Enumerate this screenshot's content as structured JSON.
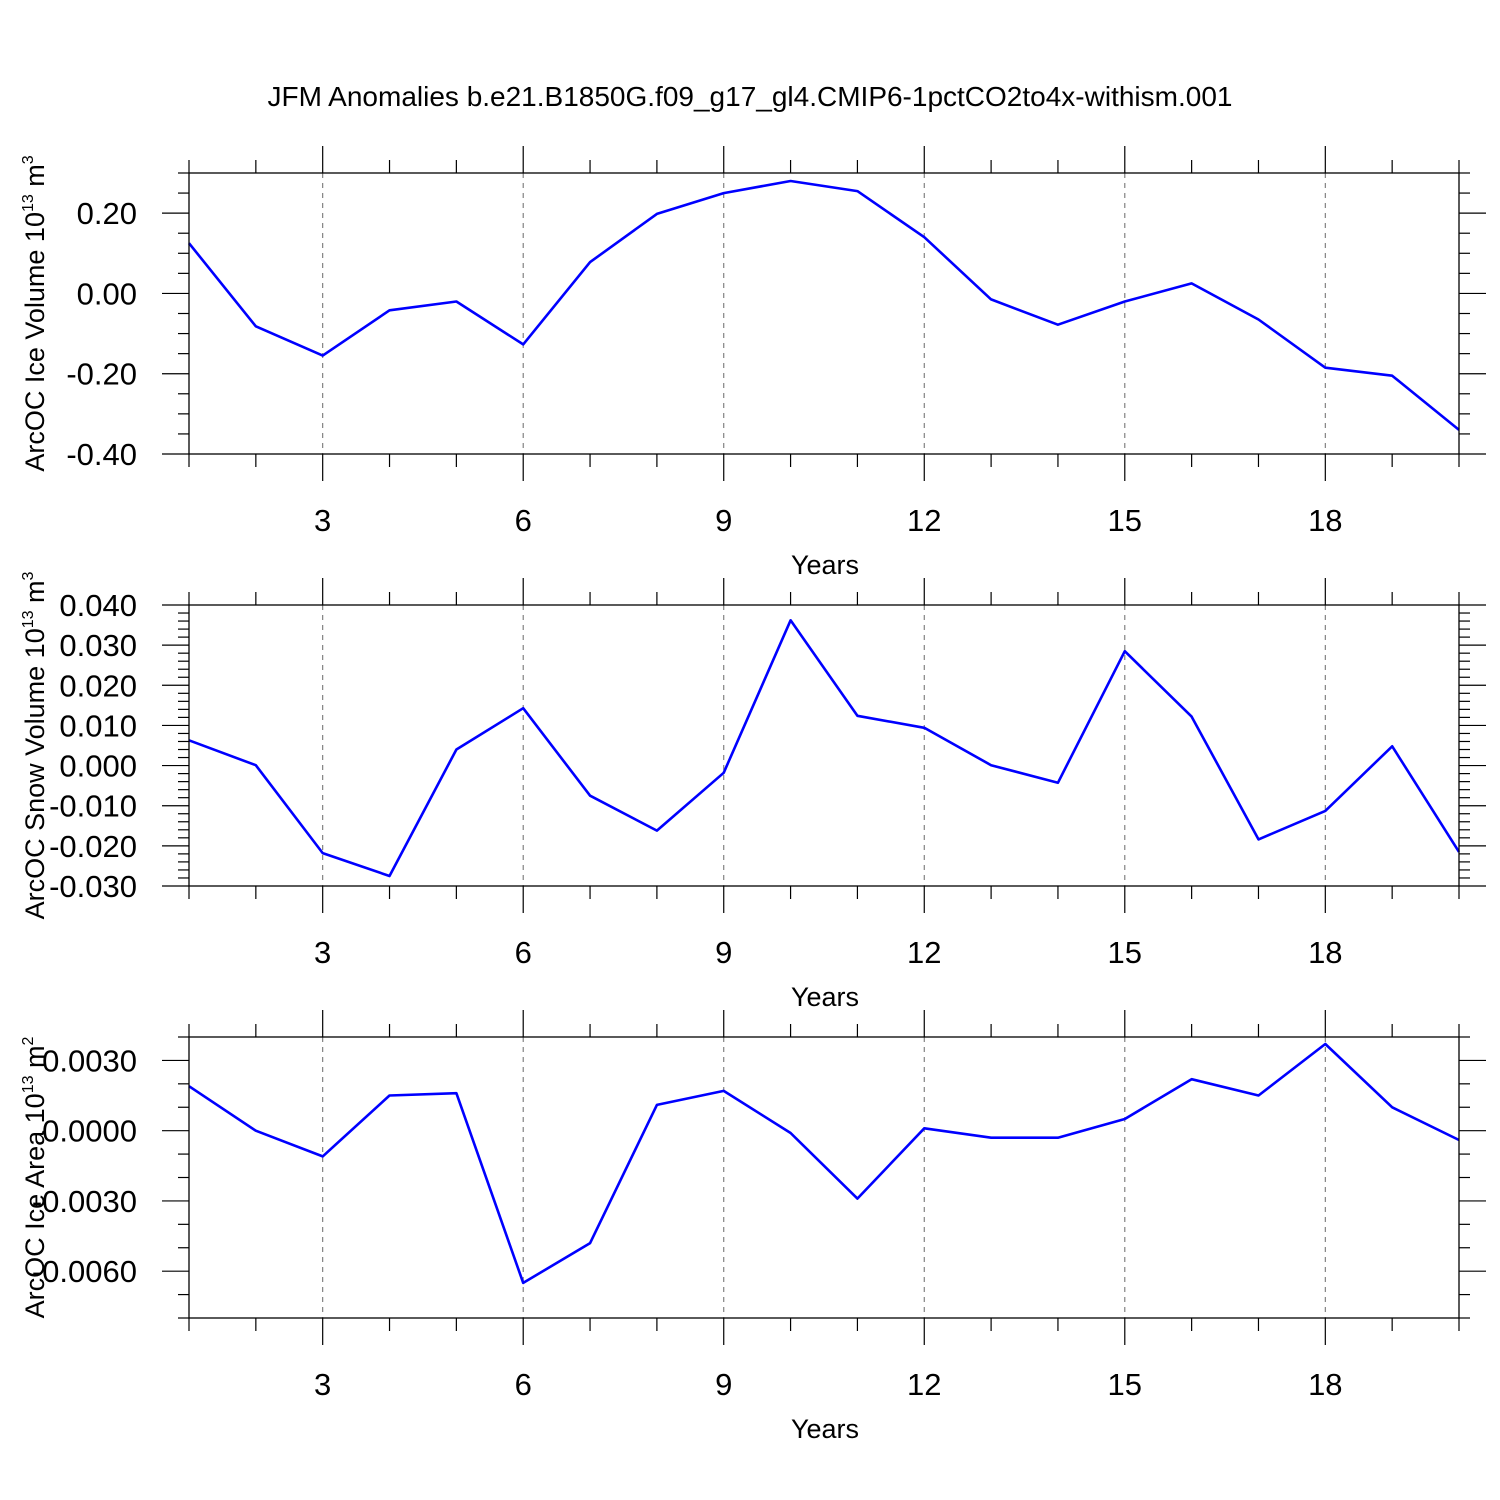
{
  "title": "JFM Anomalies b.e21.B1850G.f09_g17_gl4.CMIP6-1pctCO2to4x-withism.001",
  "colors": {
    "line": "#0000ff",
    "frame": "#000000",
    "grid": "#777777",
    "background": "#ffffff"
  },
  "chart_data": [
    {
      "type": "line",
      "title": "JFM Anomalies b.e21.B1850G.f09_g17_gl4.CMIP6-1pctCO2to4x-withism.001",
      "xlabel": "Years",
      "ylabel": "ArcOC Ice Volume 10",
      "ylabel_exp": "13",
      "ylabel_unit": "m",
      "ylabel_unit_exp": "3",
      "xlim": [
        1,
        20
      ],
      "ylim": [
        -0.4,
        0.3
      ],
      "xticks": [
        3,
        6,
        9,
        12,
        15,
        18
      ],
      "xtick_labels": [
        "3",
        "6",
        "9",
        "12",
        "15",
        "18"
      ],
      "yticks": [
        -0.4,
        -0.2,
        0.0,
        0.2
      ],
      "ytick_labels": [
        "-0.40",
        "-0.20",
        "0.00",
        "0.20"
      ],
      "y_minor_step": 0.05,
      "grid": "vertical dashed at major x ticks",
      "x": [
        1,
        2,
        3,
        4,
        5,
        6,
        7,
        8,
        9,
        10,
        11,
        12,
        13,
        14,
        15,
        16,
        17,
        18,
        19,
        20
      ],
      "values": [
        0.125,
        -0.082,
        -0.155,
        -0.042,
        -0.02,
        -0.127,
        0.078,
        0.198,
        0.25,
        0.28,
        0.255,
        0.14,
        -0.015,
        -0.078,
        -0.02,
        0.025,
        -0.065,
        -0.185,
        -0.205,
        -0.34
      ]
    },
    {
      "type": "line",
      "xlabel": "Years",
      "ylabel": "ArcOC Snow Volume 10",
      "ylabel_exp": "13",
      "ylabel_unit": "m",
      "ylabel_unit_exp": "3",
      "xlim": [
        1,
        20
      ],
      "ylim": [
        -0.03,
        0.04
      ],
      "xticks": [
        3,
        6,
        9,
        12,
        15,
        18
      ],
      "xtick_labels": [
        "3",
        "6",
        "9",
        "12",
        "15",
        "18"
      ],
      "yticks": [
        -0.03,
        -0.02,
        -0.01,
        0.0,
        0.01,
        0.02,
        0.03,
        0.04
      ],
      "ytick_labels": [
        "-0.030",
        "-0.020",
        "-0.010",
        "0.000",
        "0.010",
        "0.020",
        "0.030",
        "0.040"
      ],
      "y_minor_step": 0.002,
      "grid": "vertical dashed at major x ticks",
      "x": [
        1,
        2,
        3,
        4,
        5,
        6,
        7,
        8,
        9,
        10,
        11,
        12,
        13,
        14,
        15,
        16,
        17,
        18,
        19,
        20
      ],
      "values": [
        0.0063,
        0.0001,
        -0.0218,
        -0.0275,
        0.004,
        0.0143,
        -0.0075,
        -0.0162,
        -0.0018,
        0.0362,
        0.0124,
        0.0094,
        0.0001,
        -0.0043,
        0.0285,
        0.0122,
        -0.0184,
        -0.0113,
        0.0048,
        -0.0215
      ]
    },
    {
      "type": "line",
      "xlabel": "Years",
      "ylabel": "ArcOC Ice Area 10",
      "ylabel_exp": "13",
      "ylabel_unit": "m",
      "ylabel_unit_exp": "2",
      "xlim": [
        1,
        20
      ],
      "ylim": [
        -0.008,
        0.004
      ],
      "xticks": [
        3,
        6,
        9,
        12,
        15,
        18
      ],
      "xtick_labels": [
        "3",
        "6",
        "9",
        "12",
        "15",
        "18"
      ],
      "yticks": [
        -0.006,
        -0.003,
        0.0,
        0.003
      ],
      "ytick_labels": [
        "-0.0060",
        "-0.0030",
        "0.0000",
        "0.0030"
      ],
      "y_minor_step": 0.001,
      "grid": "vertical dashed at major x ticks",
      "x": [
        1,
        2,
        3,
        4,
        5,
        6,
        7,
        8,
        9,
        10,
        11,
        12,
        13,
        14,
        15,
        16,
        17,
        18,
        19,
        20
      ],
      "values": [
        0.0019,
        -0.0,
        -0.0011,
        0.0015,
        0.0016,
        -0.0065,
        -0.0048,
        0.0011,
        0.0017,
        -0.0001,
        -0.0029,
        0.0001,
        -0.0003,
        -0.0003,
        0.0005,
        0.0022,
        0.0015,
        0.0037,
        0.001,
        -0.0004
      ]
    }
  ]
}
